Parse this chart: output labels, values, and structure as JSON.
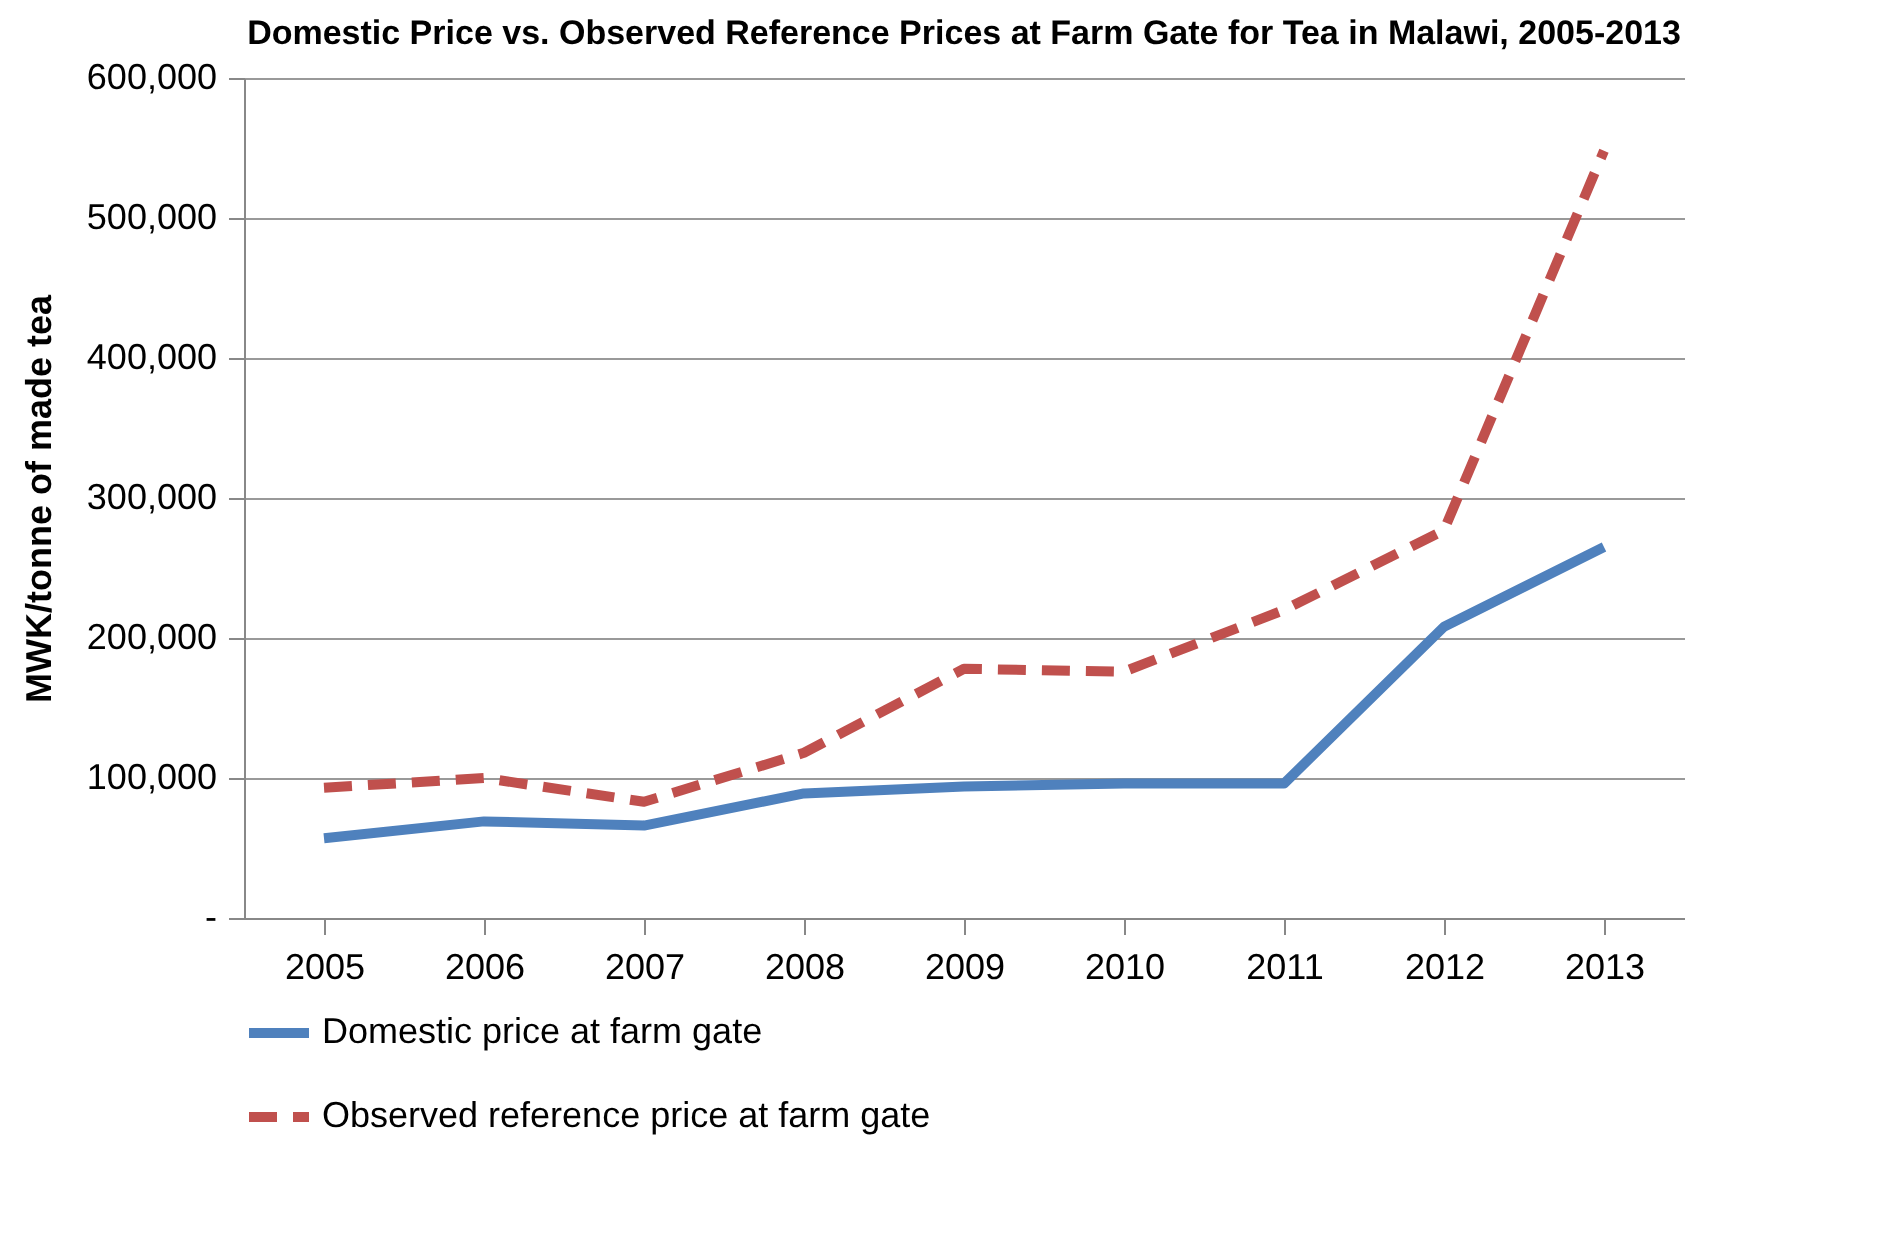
{
  "chart_data": {
    "type": "line",
    "title": "Domestic Price vs. Observed Reference Prices at Farm Gate for Tea in Malawi, 2005-2013",
    "ylabel": "MWK/tonne of made tea",
    "categories": [
      "2005",
      "2006",
      "2007",
      "2008",
      "2009",
      "2010",
      "2011",
      "2012",
      "2013"
    ],
    "series": [
      {
        "name": "Domestic price at farm gate",
        "color": "#4f81bd",
        "line_style": "solid",
        "values": [
          57000,
          69000,
          66000,
          89000,
          94000,
          96000,
          96000,
          208000,
          265000
        ]
      },
      {
        "name": "Observed reference price at farm gate",
        "color": "#c0504d",
        "line_style": "dashed",
        "values": [
          93000,
          100000,
          83000,
          118000,
          178000,
          176000,
          220000,
          277000,
          548000
        ]
      }
    ],
    "ylim": [
      0,
      600000
    ],
    "yticks": [
      {
        "value": 0,
        "label": "-"
      },
      {
        "value": 100000,
        "label": "100,000"
      },
      {
        "value": 200000,
        "label": "200,000"
      },
      {
        "value": 300000,
        "label": "300,000"
      },
      {
        "value": 400000,
        "label": "400,000"
      },
      {
        "value": 500000,
        "label": "500,000"
      },
      {
        "value": 600000,
        "label": "600,000"
      }
    ],
    "grid": "y",
    "legend": "bottom"
  }
}
